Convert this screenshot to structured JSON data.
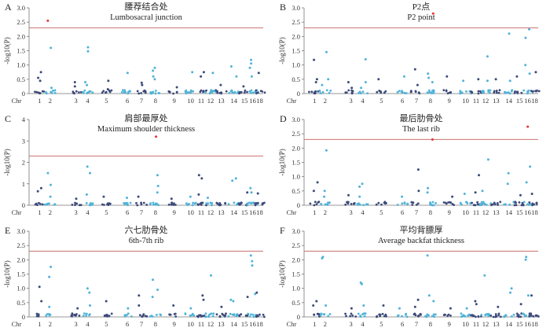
{
  "figure": {
    "threshold_color": "#c9706f",
    "dark_color": "#3d4a7a",
    "light_color": "#4fb3d9",
    "highlight_color": "#e8322f",
    "ylabel": "-log10(P)",
    "chr_prefix": "Chr",
    "chromosomes": [
      "1",
      "2",
      "3",
      "4",
      "5",
      "6",
      "7",
      "8",
      "9",
      "10",
      "11",
      "12",
      "13",
      "14",
      "15",
      "16",
      "18"
    ]
  },
  "chart_data": [
    {
      "type": "scatter",
      "panel": "A",
      "title_zh": "腰荐结合处",
      "title_en": "Lumbosacral junction",
      "ylim": [
        0,
        3
      ],
      "yticks": [
        "0",
        "0.5",
        "1.0",
        "1.5",
        "2.0",
        "2.5",
        "3.0"
      ],
      "threshold": 2.3,
      "peaks": [
        [
          0,
          0.75
        ],
        [
          0,
          0.55
        ],
        [
          0,
          0.45
        ],
        [
          1,
          2.55
        ],
        [
          1,
          0.2
        ],
        [
          1,
          0.1
        ],
        [
          1,
          1.6
        ],
        [
          2,
          0.4
        ],
        [
          2,
          0.25
        ],
        [
          3,
          1.62
        ],
        [
          3,
          1.48
        ],
        [
          3,
          0.4
        ],
        [
          3,
          0.3
        ],
        [
          4,
          0.45
        ],
        [
          4,
          0.15
        ],
        [
          5,
          0.72
        ],
        [
          6,
          0.38
        ],
        [
          6,
          0.3
        ],
        [
          7,
          0.9
        ],
        [
          7,
          0.8
        ],
        [
          7,
          0.6
        ],
        [
          7,
          0.5
        ],
        [
          8,
          0.22
        ],
        [
          9,
          0.75
        ],
        [
          10,
          0.75
        ],
        [
          10,
          0.6
        ],
        [
          11,
          0.72
        ],
        [
          12,
          0.3
        ],
        [
          13,
          0.95
        ],
        [
          13,
          0.6
        ],
        [
          14,
          0.25
        ],
        [
          15,
          1.05
        ],
        [
          15,
          1.18
        ],
        [
          15,
          0.9
        ],
        [
          15,
          0.6
        ],
        [
          16,
          0.72
        ]
      ]
    },
    {
      "type": "scatter",
      "panel": "B",
      "title_zh": "P2点",
      "title_en": "P2 point",
      "ylim": [
        0,
        3
      ],
      "yticks": [
        "0",
        "0.5",
        "1.0",
        "1.5",
        "2.0",
        "2.5",
        "3.0"
      ],
      "threshold": 2.3,
      "peaks": [
        [
          0,
          1.18
        ],
        [
          0,
          0.5
        ],
        [
          0,
          0.4
        ],
        [
          1,
          1.45
        ],
        [
          1,
          0.5
        ],
        [
          1,
          0.3
        ],
        [
          2,
          0.4
        ],
        [
          2,
          0.2
        ],
        [
          3,
          1.2
        ],
        [
          3,
          0.4
        ],
        [
          3,
          0.2
        ],
        [
          4,
          0.5
        ],
        [
          5,
          0.6
        ],
        [
          6,
          0.85
        ],
        [
          6,
          0.3
        ],
        [
          7,
          2.8
        ],
        [
          7,
          0.7
        ],
        [
          7,
          0.55
        ],
        [
          7,
          0.4
        ],
        [
          8,
          0.6
        ],
        [
          9,
          0.45
        ],
        [
          10,
          0.5
        ],
        [
          11,
          0.45
        ],
        [
          11,
          1.3
        ],
        [
          12,
          0.5
        ],
        [
          13,
          2.1
        ],
        [
          13,
          0.45
        ],
        [
          14,
          0.6
        ],
        [
          15,
          2.25
        ],
        [
          15,
          1.95
        ],
        [
          15,
          1.0
        ],
        [
          15,
          0.7
        ],
        [
          16,
          0.75
        ]
      ]
    },
    {
      "type": "scatter",
      "panel": "C",
      "title_zh": "肩部最厚处",
      "title_en": "Maximum shoulder thickness",
      "ylim": [
        0,
        4
      ],
      "yticks": [
        "0",
        "1",
        "2",
        "3",
        "4"
      ],
      "threshold": 2.3,
      "peaks": [
        [
          0,
          0.8
        ],
        [
          0,
          0.65
        ],
        [
          1,
          1.5
        ],
        [
          1,
          0.95
        ],
        [
          1,
          0.4
        ],
        [
          2,
          0.3
        ],
        [
          3,
          1.5
        ],
        [
          3,
          1.8
        ],
        [
          3,
          0.5
        ],
        [
          4,
          0.4
        ],
        [
          5,
          0.35
        ],
        [
          6,
          0.4
        ],
        [
          7,
          3.2
        ],
        [
          7,
          1.4
        ],
        [
          7,
          0.9
        ],
        [
          7,
          0.6
        ],
        [
          8,
          0.3
        ],
        [
          9,
          0.4
        ],
        [
          10,
          1.4
        ],
        [
          10,
          1.25
        ],
        [
          10,
          0.5
        ],
        [
          11,
          0.35
        ],
        [
          13,
          1.25
        ],
        [
          13,
          1.15
        ],
        [
          14,
          0.6
        ],
        [
          15,
          0.8
        ],
        [
          15,
          0.6
        ],
        [
          16,
          0.55
        ]
      ]
    },
    {
      "type": "scatter",
      "panel": "D",
      "title_zh": "最后肋骨处",
      "title_en": "The last rib",
      "ylim": [
        0,
        3
      ],
      "yticks": [
        "0",
        "0.5",
        "1.0",
        "1.5",
        "2.0",
        "2.5",
        "3.0"
      ],
      "threshold": 2.3,
      "peaks": [
        [
          0,
          0.8
        ],
        [
          0,
          0.5
        ],
        [
          1,
          1.92
        ],
        [
          1,
          0.5
        ],
        [
          1,
          0.3
        ],
        [
          2,
          0.35
        ],
        [
          3,
          0.75
        ],
        [
          3,
          0.65
        ],
        [
          3,
          0.3
        ],
        [
          5,
          0.3
        ],
        [
          6,
          1.25
        ],
        [
          6,
          0.5
        ],
        [
          7,
          2.3
        ],
        [
          7,
          0.6
        ],
        [
          7,
          0.45
        ],
        [
          8,
          0.3
        ],
        [
          9,
          0.4
        ],
        [
          10,
          1.05
        ],
        [
          10,
          0.45
        ],
        [
          11,
          1.6
        ],
        [
          11,
          0.5
        ],
        [
          13,
          1.12
        ],
        [
          13,
          0.75
        ],
        [
          14,
          0.35
        ],
        [
          15,
          2.75
        ],
        [
          15,
          1.35
        ],
        [
          15,
          0.8
        ],
        [
          16,
          0.4
        ]
      ]
    },
    {
      "type": "scatter",
      "panel": "E",
      "title_zh": "六七肋骨处",
      "title_en": "6th-7th rib",
      "ylim": [
        0,
        3
      ],
      "yticks": [
        "0",
        "0.5",
        "1.0",
        "1.5",
        "2.0",
        "2.5",
        "3.0"
      ],
      "threshold": 2.3,
      "peaks": [
        [
          0,
          1.05
        ],
        [
          0,
          0.55
        ],
        [
          1,
          1.4
        ],
        [
          1,
          1.75
        ],
        [
          1,
          0.35
        ],
        [
          2,
          0.3
        ],
        [
          3,
          0.85
        ],
        [
          3,
          1.0
        ],
        [
          3,
          0.4
        ],
        [
          4,
          0.55
        ],
        [
          5,
          0.3
        ],
        [
          6,
          0.75
        ],
        [
          6,
          0.4
        ],
        [
          7,
          1.3
        ],
        [
          7,
          0.95
        ],
        [
          7,
          0.7
        ],
        [
          8,
          0.4
        ],
        [
          9,
          0.3
        ],
        [
          10,
          0.75
        ],
        [
          10,
          0.6
        ],
        [
          11,
          1.45
        ],
        [
          12,
          0.35
        ],
        [
          13,
          0.6
        ],
        [
          13,
          0.55
        ],
        [
          14,
          0.7
        ],
        [
          15,
          2.15
        ],
        [
          15,
          1.95
        ],
        [
          15,
          1.8
        ],
        [
          15,
          0.8
        ],
        [
          16,
          0.85
        ]
      ]
    },
    {
      "type": "scatter",
      "panel": "F",
      "title_zh": "平均背膘厚",
      "title_en": "Average backfat thickness",
      "ylim": [
        0,
        3
      ],
      "yticks": [
        "0",
        "0.5",
        "1.0",
        "1.5",
        "2.0",
        "2.5",
        "3.0"
      ],
      "threshold": 2.3,
      "peaks": [
        [
          0,
          0.55
        ],
        [
          0,
          0.4
        ],
        [
          1,
          2.1
        ],
        [
          1,
          2.05
        ],
        [
          1,
          0.4
        ],
        [
          2,
          0.3
        ],
        [
          3,
          1.2
        ],
        [
          3,
          1.15
        ],
        [
          3,
          0.4
        ],
        [
          4,
          0.4
        ],
        [
          5,
          0.3
        ],
        [
          6,
          0.6
        ],
        [
          6,
          0.35
        ],
        [
          7,
          2.15
        ],
        [
          7,
          0.75
        ],
        [
          7,
          0.55
        ],
        [
          8,
          0.3
        ],
        [
          9,
          0.3
        ],
        [
          10,
          0.55
        ],
        [
          10,
          0.45
        ],
        [
          11,
          1.45
        ],
        [
          12,
          0.35
        ],
        [
          13,
          1.0
        ],
        [
          13,
          0.85
        ],
        [
          14,
          0.45
        ],
        [
          15,
          2.1
        ],
        [
          15,
          2.0
        ],
        [
          15,
          0.75
        ],
        [
          16,
          0.75
        ]
      ]
    }
  ]
}
